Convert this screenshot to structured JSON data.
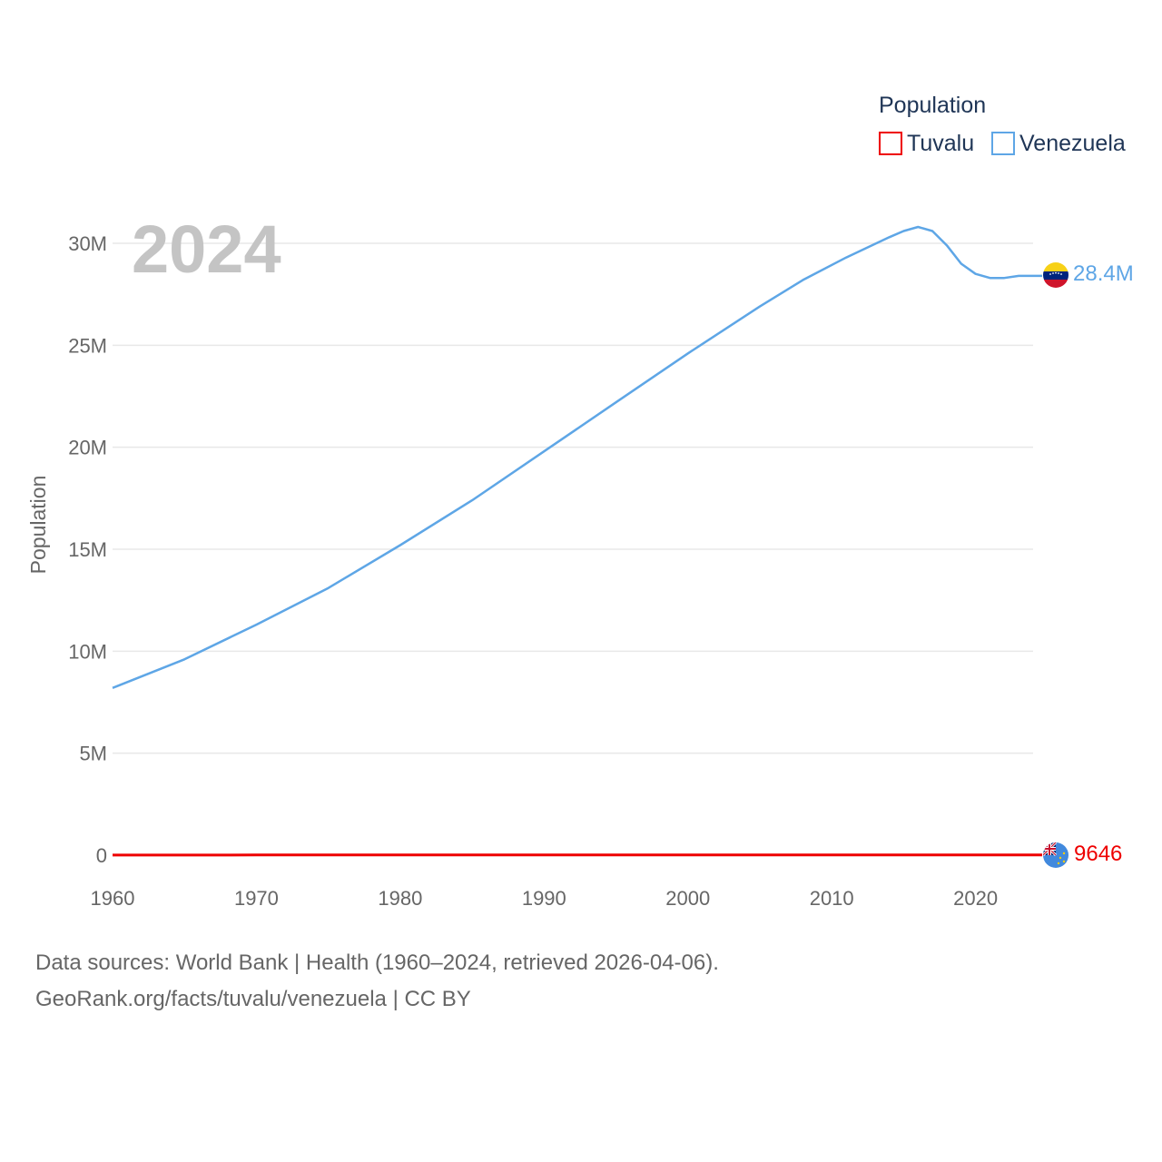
{
  "chart_data": {
    "type": "line",
    "title": "",
    "year_label": "2024",
    "xlabel": "",
    "ylabel": "Population",
    "xlim": [
      1960,
      2024
    ],
    "ylim": [
      0,
      32000000
    ],
    "x_ticks": [
      1960,
      1970,
      1980,
      1990,
      2000,
      2010,
      2020
    ],
    "y_ticks": [
      {
        "value": 0,
        "label": "0"
      },
      {
        "value": 5000000,
        "label": "5M"
      },
      {
        "value": 10000000,
        "label": "10M"
      },
      {
        "value": 15000000,
        "label": "15M"
      },
      {
        "value": 20000000,
        "label": "20M"
      },
      {
        "value": 25000000,
        "label": "25M"
      },
      {
        "value": 30000000,
        "label": "30M"
      }
    ],
    "grid": true,
    "legend": {
      "title": "Population",
      "position": "top-right"
    },
    "series": [
      {
        "name": "Tuvalu",
        "color": "#ee0000",
        "end_label": "9646",
        "flag": "tuvalu-flag",
        "x": [
          1960,
          1965,
          1970,
          1975,
          1980,
          1985,
          1990,
          1995,
          2000,
          2005,
          2010,
          2015,
          2020,
          2024
        ],
        "values": [
          6100,
          6500,
          6900,
          7300,
          7700,
          8100,
          9000,
          9400,
          9600,
          9800,
          10500,
          10900,
          11100,
          9646
        ]
      },
      {
        "name": "Venezuela",
        "color": "#5ea6e6",
        "end_label": "28.4M",
        "flag": "venezuela-flag",
        "x": [
          1960,
          1965,
          1970,
          1975,
          1980,
          1985,
          1990,
          1995,
          2000,
          2005,
          2008,
          2011,
          2014,
          2015,
          2016,
          2017,
          2018,
          2019,
          2020,
          2021,
          2022,
          2023,
          2024
        ],
        "values": [
          8200000,
          9600000,
          11300000,
          13100000,
          15200000,
          17400000,
          19800000,
          22200000,
          24600000,
          26900000,
          28200000,
          29300000,
          30300000,
          30600000,
          30800000,
          30600000,
          29900000,
          29000000,
          28500000,
          28300000,
          28300000,
          28400000,
          28400000
        ]
      }
    ]
  },
  "source": {
    "line1": "Data sources: World Bank | Health (1960–2024, retrieved 2026-04-06).",
    "line2": "GeoRank.org/facts/tuvalu/venezuela | CC BY"
  }
}
